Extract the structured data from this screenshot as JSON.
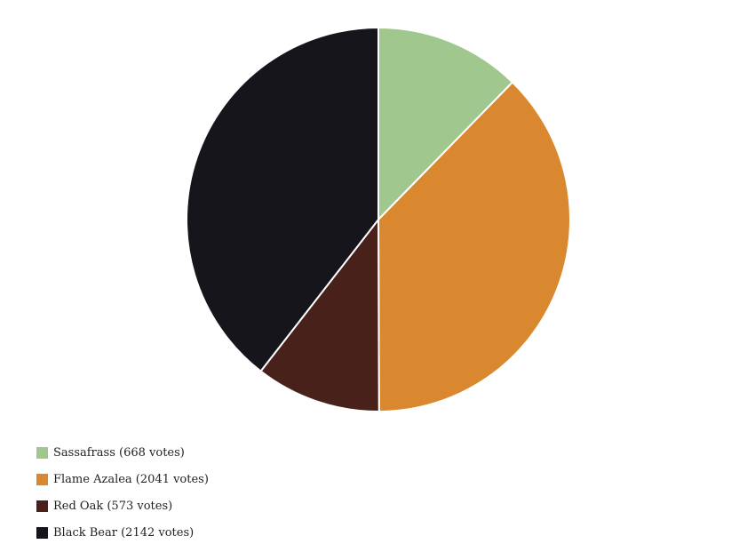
{
  "chart_data": {
    "type": "pie",
    "title": "",
    "categories": [
      "Sassafrass",
      "Flame Azalea",
      "Red Oak",
      "Black Bear"
    ],
    "values": [
      668,
      2041,
      573,
      2142
    ],
    "colors": [
      "#a0c78d",
      "#d98830",
      "#48221a",
      "#15151b"
    ],
    "legend_labels": [
      "Sassafrass (668 votes)",
      "Flame Azalea (2041 votes)",
      "Red Oak (573 votes)",
      "Black Bear (2142 votes)"
    ],
    "legend_position": "bottom-left"
  }
}
